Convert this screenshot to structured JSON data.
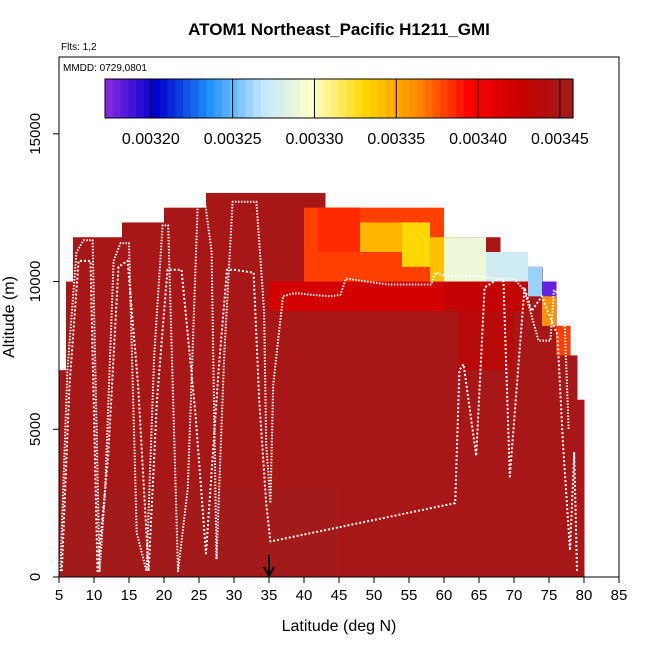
{
  "chart_data": {
    "type": "heatmap",
    "title": "ATOM1 Northeast_Pacific H1211_GMI",
    "annotations": {
      "flights": "Flts: 1,2",
      "dates": "MMDD: 0729,0801"
    },
    "xlabel": "Latitude (deg N)",
    "ylabel": "Altitude (m)",
    "xlim": [
      5,
      85
    ],
    "ylim": [
      0,
      17600
    ],
    "x_ticks": [
      5,
      10,
      15,
      20,
      25,
      30,
      35,
      40,
      45,
      50,
      55,
      60,
      65,
      70,
      75,
      80,
      85
    ],
    "y_ticks": [
      0,
      5000,
      10000,
      15000
    ],
    "x_tick_labels": [
      "5",
      "10",
      "15",
      "20",
      "25",
      "30",
      "35",
      "40",
      "45",
      "50",
      "55",
      "60",
      "65",
      "70",
      "75",
      "80",
      "85"
    ],
    "y_tick_labels": [
      "0",
      "5000",
      "10000",
      "15000"
    ],
    "colorbar": {
      "range": [
        0.003172,
        0.003458
      ],
      "tick_values": [
        0.0032,
        0.00325,
        0.0033,
        0.00335,
        0.0034,
        0.00345
      ],
      "tick_labels": [
        "0.00320",
        "0.00325",
        "0.00330",
        "0.00335",
        "0.00340",
        "0.00345"
      ],
      "colors": [
        "#8a2be2",
        "#0000cd",
        "#1e90ff",
        "#bfe6ff",
        "#ffffc8",
        "#ffd700",
        "#ff8c00",
        "#ff0000",
        "#c80000",
        "#a01c1c"
      ]
    },
    "column_tops": [
      {
        "lat": [
          5,
          6
        ],
        "top_m": 7000
      },
      {
        "lat": [
          6,
          7
        ],
        "top_m": 10000
      },
      {
        "lat": [
          7,
          14
        ],
        "top_m": 11500
      },
      {
        "lat": [
          14,
          16
        ],
        "top_m": 12000
      },
      {
        "lat": [
          16,
          20
        ],
        "top_m": 12000
      },
      {
        "lat": [
          20,
          26
        ],
        "top_m": 12500
      },
      {
        "lat": [
          26,
          43
        ],
        "top_m": 13000
      },
      {
        "lat": [
          43,
          47
        ],
        "top_m": 12500
      },
      {
        "lat": [
          47,
          58
        ],
        "top_m": 12000
      },
      {
        "lat": [
          58,
          63
        ],
        "top_m": 11500
      },
      {
        "lat": [
          63,
          68
        ],
        "top_m": 11500
      },
      {
        "lat": [
          68,
          71
        ],
        "top_m": 11000
      },
      {
        "lat": [
          71,
          74
        ],
        "top_m": 10500
      },
      {
        "lat": [
          74,
          76
        ],
        "top_m": 10000
      },
      {
        "lat": [
          76,
          78
        ],
        "top_m": 8500
      },
      {
        "lat": [
          78,
          79
        ],
        "top_m": 7500
      },
      {
        "lat": [
          79,
          80
        ],
        "top_m": 6000
      }
    ],
    "background_value": 0.003452,
    "field_cells": [
      {
        "lat": [
          5,
          45
        ],
        "alt": [
          0,
          3000
        ],
        "value": 0.003456
      },
      {
        "lat": [
          35,
          60
        ],
        "alt": [
          9000,
          10000
        ],
        "value": 0.00342
      },
      {
        "lat": [
          40,
          60
        ],
        "alt": [
          10000,
          12500
        ],
        "value": 0.00338
      },
      {
        "lat": [
          42,
          48
        ],
        "alt": [
          11000,
          12500
        ],
        "value": 0.003385
      },
      {
        "lat": [
          48,
          54
        ],
        "alt": [
          11000,
          12000
        ],
        "value": 0.003345
      },
      {
        "lat": [
          54,
          58
        ],
        "alt": [
          10500,
          12000
        ],
        "value": 0.00333
      },
      {
        "lat": [
          58,
          62
        ],
        "alt": [
          10000,
          11500
        ],
        "value": 0.00334
      },
      {
        "lat": [
          60,
          66
        ],
        "alt": [
          10000,
          11500
        ],
        "value": 0.00329
      },
      {
        "lat": [
          66,
          72
        ],
        "alt": [
          10000,
          11000
        ],
        "value": 0.003275
      },
      {
        "lat": [
          72,
          74
        ],
        "alt": [
          9500,
          10500
        ],
        "value": 0.00326
      },
      {
        "lat": [
          74,
          76
        ],
        "alt": [
          9500,
          10000
        ],
        "value": 0.00318
      },
      {
        "lat": [
          74,
          76
        ],
        "alt": [
          8500,
          9500
        ],
        "value": 0.00336
      },
      {
        "lat": [
          76,
          78
        ],
        "alt": [
          7500,
          8500
        ],
        "value": 0.00338
      },
      {
        "lat": [
          60,
          72
        ],
        "alt": [
          9000,
          10000
        ],
        "value": 0.00343
      },
      {
        "lat": [
          62,
          70
        ],
        "alt": [
          7000,
          9000
        ],
        "value": 0.003438
      }
    ],
    "flight_track_1": {
      "lat": [
        5.2,
        6.2,
        7.5,
        8.5,
        9.8,
        10.8,
        11.6,
        12.8,
        13.8,
        15.0,
        16.1,
        17.5,
        18.6,
        19.8,
        20.6,
        22.0,
        23.4,
        24.8,
        25.8,
        26.8,
        27.5,
        28.6,
        29.8,
        32.0,
        33.2,
        34.3,
        34.6,
        35.2,
        35.6,
        37.0,
        38.5,
        39.3,
        41.0,
        43.8,
        45.2,
        46.0,
        52.0,
        58.2,
        58.8,
        60.0,
        64.0,
        67.5,
        70.0,
        71.5,
        73.5,
        75.2,
        75.7,
        77.1,
        77.8
      ],
      "alt": [
        200,
        7000,
        11000,
        11400,
        11400,
        200,
        3000,
        10700,
        11300,
        11300,
        1500,
        200,
        7500,
        11900,
        11900,
        200,
        3000,
        12500,
        12800,
        11000,
        600,
        7500,
        12700,
        12700,
        12700,
        9000,
        4500,
        2500,
        6500,
        9500,
        9600,
        9600,
        9550,
        9500,
        9550,
        10100,
        9900,
        9900,
        10300,
        10200,
        10200,
        10100,
        10100,
        9700,
        8000,
        8000,
        9700,
        9500,
        5000
      ]
    },
    "flight_track_2": {
      "lat": [
        5.4,
        6.5,
        7.8,
        9.5,
        10.5,
        12.0,
        13.5,
        14.8,
        16.3,
        17.8,
        19.0,
        20.5,
        22.5,
        24.5,
        26.0,
        27.8,
        29.0,
        30.0,
        32.8,
        33.6,
        34.6,
        35.2,
        61.6,
        62.2,
        62.8,
        64.6,
        65.8,
        67.8,
        68.5,
        69.4,
        71.5,
        72.5,
        74.0,
        74.8,
        76.2,
        77.0,
        78.0,
        78.6,
        79.0
      ],
      "alt": [
        200,
        6500,
        10700,
        10700,
        200,
        4000,
        10500,
        10700,
        6500,
        200,
        6000,
        10400,
        10400,
        5500,
        800,
        7000,
        10400,
        10400,
        10300,
        6000,
        2500,
        1200,
        2500,
        7000,
        7200,
        4100,
        9800,
        10100,
        10000,
        3400,
        9800,
        9000,
        9500,
        9000,
        8200,
        4500,
        900,
        4200,
        200
      ]
    },
    "arrow_marker": {
      "lat": 35,
      "alt": 600
    }
  }
}
